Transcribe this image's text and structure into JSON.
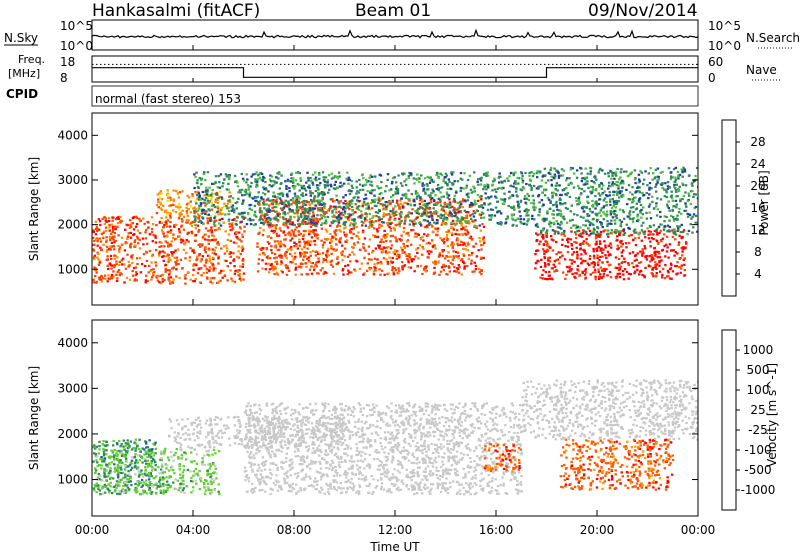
{
  "header": {
    "station": "Hankasalmi (fitACF)",
    "beam": "Beam 01",
    "date": "09/Nov/2014"
  },
  "nsky_panel": {
    "left_label": "N.Sky",
    "right_label": "N.Search",
    "tick_top": "10^5",
    "tick_bottom": "10^0",
    "right_tick_top": "10^5",
    "right_tick_bottom": "10^0",
    "trace_level": 0.45,
    "search_level": 0.55
  },
  "freq_panel": {
    "left_label_1": "Freq.",
    "left_label_2": "[MHz]",
    "tick_top": "18",
    "tick_bottom": "8",
    "right_label": "Nave",
    "right_tick_top": "60",
    "right_tick_bottom": "0",
    "freq_level": 0.18,
    "nave_level": 0.68,
    "freq_step_hours": [
      0,
      6,
      18,
      24
    ],
    "freq_step_levels": [
      0.55,
      0.18,
      0.55
    ]
  },
  "cpid": {
    "label": "CPID",
    "text": "normal (fast stereo) 153"
  },
  "power_panel": {
    "ylabel": "Slant Range [km]",
    "y_ticks": [
      "1000",
      "2000",
      "3000",
      "4000"
    ],
    "colorbar_title": "Power [dB]",
    "colorbar_labels": [
      "4",
      "8",
      "12",
      "16",
      "20",
      "24",
      "28"
    ],
    "colorbar_colors": [
      "#0000ff",
      "#1e3ea0",
      "#2e8b57",
      "#4cbf3f",
      "#f0e020",
      "#ff8c00",
      "#ff4400",
      "#ff0000"
    ]
  },
  "velocity_panel": {
    "ylabel": "Slant Range [km]",
    "y_ticks": [
      "1000",
      "2000",
      "3000",
      "4000"
    ],
    "colorbar_title": "Velocity [m s^-1]",
    "colorbar_labels": [
      "-1000",
      "-500",
      "-100",
      "-25",
      "25",
      "100",
      "500",
      "1000"
    ],
    "colorbar_colors": [
      "#ff0000",
      "#ff5a00",
      "#ff9a00",
      "#ffcc66",
      "#c8c8c8",
      "#60d030",
      "#2e8b57",
      "#1e5faa",
      "#1010c8"
    ]
  },
  "x_axis": {
    "label": "Time UT",
    "ticks": [
      "00:00",
      "04:00",
      "08:00",
      "12:00",
      "16:00",
      "20:00",
      "00:00"
    ]
  },
  "chart_data": {
    "type": "heatmap",
    "x_unit": "hours UT",
    "xlim": [
      0,
      24
    ],
    "ylim": [
      200,
      4500
    ],
    "power_bands": [
      {
        "x": [
          0,
          6
        ],
        "y": [
          700,
          2200
        ],
        "value": 26
      },
      {
        "x": [
          2.5,
          5.5
        ],
        "y": [
          2200,
          2800
        ],
        "value": 22
      },
      {
        "x": [
          6.5,
          15.5
        ],
        "y": [
          900,
          2600
        ],
        "value": 24
      },
      {
        "x": [
          4,
          17.5
        ],
        "y": [
          2000,
          3200
        ],
        "value": 10
      },
      {
        "x": [
          17.5,
          23.5
        ],
        "y": [
          800,
          1900
        ],
        "value": 28
      },
      {
        "x": [
          17.5,
          24
        ],
        "y": [
          1800,
          3300
        ],
        "value": 8
      }
    ],
    "velocity_bands": [
      {
        "x": [
          0,
          2.5
        ],
        "y": [
          700,
          1900
        ],
        "value": 500
      },
      {
        "x": [
          0,
          5
        ],
        "y": [
          700,
          1700
        ],
        "value": 100
      },
      {
        "x": [
          3,
          10
        ],
        "y": [
          1700,
          2400
        ],
        "value": 0
      },
      {
        "x": [
          6,
          17
        ],
        "y": [
          700,
          2700
        ],
        "value": 0
      },
      {
        "x": [
          15.5,
          17
        ],
        "y": [
          1200,
          1800
        ],
        "value": -500
      },
      {
        "x": [
          18.5,
          23
        ],
        "y": [
          800,
          1900
        ],
        "value": -500
      },
      {
        "x": [
          17,
          24
        ],
        "y": [
          1900,
          3200
        ],
        "value": 0
      }
    ]
  }
}
